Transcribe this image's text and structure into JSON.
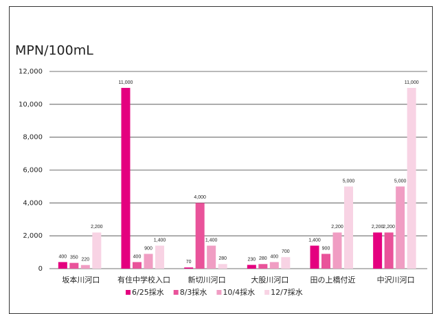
{
  "chart_data": {
    "type": "bar",
    "title": "MPN/100mL",
    "categories": [
      "坂本川河口",
      "有住中学校入口",
      "新切川河口",
      "大股川河口",
      "田の上橋付近",
      "中沢川河口"
    ],
    "series": [
      {
        "name": "6/25採水",
        "color": "#e4007f",
        "values": [
          400,
          11000,
          70,
          230,
          1400,
          2200
        ],
        "value_labels": [
          "400",
          "11,000",
          "70",
          "230",
          "1,400",
          "2,200"
        ]
      },
      {
        "name": "8/3採水",
        "color": "#e9539a",
        "values": [
          350,
          400,
          4000,
          280,
          900,
          2200
        ],
        "value_labels": [
          "350",
          "400",
          "4,000",
          "280",
          "900",
          "2,200"
        ]
      },
      {
        "name": "10/4採水",
        "color": "#f09dc3",
        "values": [
          220,
          900,
          1400,
          400,
          2200,
          5000
        ],
        "value_labels": [
          "220",
          "900",
          "1,400",
          "400",
          "2,200",
          "5,000"
        ]
      },
      {
        "name": "12/7採水",
        "color": "#f8d3e4",
        "values": [
          2200,
          1400,
          280,
          700,
          5000,
          11000
        ],
        "value_labels": [
          "2,200",
          "1,400",
          "280",
          "700",
          "5,000",
          "11,000"
        ]
      }
    ],
    "ylim": [
      0,
      12000
    ],
    "yticks": [
      0,
      {
        "value": 2000,
        "label": "2,000"
      },
      {
        "value": 4000,
        "label": "4,000"
      },
      {
        "value": 6000,
        "label": "6,000"
      },
      {
        "value": 8000,
        "label": "8,000"
      },
      {
        "value": 10000,
        "label": "10,000"
      },
      {
        "value": 12000,
        "label": "12,000"
      }
    ],
    "grid": true,
    "legend": "bottom"
  }
}
